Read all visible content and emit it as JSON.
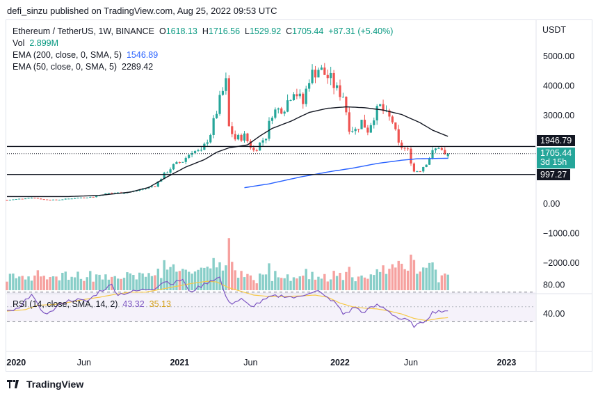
{
  "publisher": "defi_sinzu published on TradingView.com, Aug 25, 2022 09:53 UTC",
  "legend": {
    "symbol": "Ethereum / TetherUS, 1W, BINANCE",
    "o_label": "O",
    "o": "1618.13",
    "h_label": "H",
    "h": "1716.56",
    "l_label": "L",
    "l": "1529.92",
    "c_label": "C",
    "c": "1705.44",
    "change": "+87.31 (+5.40%)",
    "vol_label": "Vol",
    "vol": "2.899M",
    "ema200_label": "EMA (200, close, 0, SMA, 5)",
    "ema200": "1546.89",
    "ema50_label": "EMA (50, close, 0, SMA, 5)",
    "ema50": "2289.42",
    "rsi_label": "RSI (14, close, SMA, 14, 2)",
    "rsi": "43.32",
    "rsi_ma": "35.13"
  },
  "price_axis": {
    "currency": "USDT",
    "ticks": [
      "5000.00",
      "4000.00",
      "3000.00",
      "0.00",
      "−1000.00",
      "−2000.00"
    ],
    "tags": {
      "resistance": "1946.79",
      "last": "1705.44",
      "countdown": "3d 15h",
      "support": "997.27"
    }
  },
  "rsi_axis": {
    "ticks": [
      "80.00",
      "40.00"
    ]
  },
  "time_axis": {
    "ticks": [
      "2020",
      "Jun",
      "2021",
      "Jun",
      "2022",
      "Jun",
      "2023"
    ]
  },
  "footer": {
    "brand": "TradingView"
  },
  "colors": {
    "up": "#26a69a",
    "down": "#ef5350",
    "ema200": "#2962ff",
    "ema50": "#131722",
    "rsi": "#7e57c2",
    "rsi_ma": "#f7c948",
    "rsi_band": "#7e57c2",
    "level": "#131722"
  },
  "chart_data": {
    "type": "candlestick",
    "title": "Ethereum / TetherUS, 1W, BINANCE",
    "interval": "1W",
    "ylim": [
      -2500,
      5400
    ],
    "horizontal_levels": [
      1946.79,
      997.27
    ],
    "time_ticks": [
      "2020",
      "Jun",
      "2021",
      "Jun",
      "2022",
      "Jun",
      "2023"
    ],
    "rsi_ticks": [
      80,
      40
    ],
    "rsi_range": [
      20,
      95
    ],
    "rsi_bands": [
      70,
      30
    ],
    "anchors": [
      [
        0,
        130
      ],
      [
        8,
        215
      ],
      [
        12,
        150
      ],
      [
        16,
        135
      ],
      [
        22,
        200
      ],
      [
        28,
        240
      ],
      [
        33,
        370
      ],
      [
        38,
        380
      ],
      [
        42,
        450
      ],
      [
        48,
        620
      ],
      [
        51,
        1000
      ],
      [
        54,
        1300
      ],
      [
        57,
        1450
      ],
      [
        60,
        1800
      ],
      [
        63,
        1750
      ],
      [
        66,
        2400
      ],
      [
        69,
        3500
      ],
      [
        71,
        4100
      ],
      [
        72,
        2600
      ],
      [
        74,
        2200
      ],
      [
        77,
        2300
      ],
      [
        80,
        1800
      ],
      [
        84,
        2300
      ],
      [
        86,
        3100
      ],
      [
        90,
        3300
      ],
      [
        93,
        3900
      ],
      [
        96,
        3400
      ],
      [
        98,
        4300
      ],
      [
        101,
        4600
      ],
      [
        103,
        4400
      ],
      [
        105,
        4200
      ],
      [
        107,
        3850
      ],
      [
        109,
        3700
      ],
      [
        111,
        2600
      ],
      [
        113,
        2500
      ],
      [
        115,
        2800
      ],
      [
        117,
        2500
      ],
      [
        119,
        3000
      ],
      [
        121,
        3300
      ],
      [
        123,
        3000
      ],
      [
        125,
        2800
      ],
      [
        127,
        2000
      ],
      [
        130,
        1800
      ],
      [
        132,
        1100
      ],
      [
        134,
        1150
      ],
      [
        136,
        1400
      ],
      [
        138,
        1750
      ],
      [
        140,
        1950
      ],
      [
        142,
        1650
      ],
      [
        143,
        1705
      ]
    ],
    "ema50": [
      [
        0,
        250
      ],
      [
        20,
        250
      ],
      [
        30,
        290
      ],
      [
        40,
        400
      ],
      [
        46,
        560
      ],
      [
        52,
        920
      ],
      [
        58,
        1250
      ],
      [
        64,
        1500
      ],
      [
        68,
        1750
      ],
      [
        72,
        1900
      ],
      [
        78,
        2000
      ],
      [
        82,
        2300
      ],
      [
        86,
        2560
      ],
      [
        92,
        2800
      ],
      [
        98,
        3100
      ],
      [
        104,
        3240
      ],
      [
        110,
        3290
      ],
      [
        116,
        3260
      ],
      [
        122,
        3180
      ],
      [
        128,
        3030
      ],
      [
        134,
        2750
      ],
      [
        138,
        2500
      ],
      [
        143,
        2289
      ]
    ],
    "ema200": [
      [
        77,
        550
      ],
      [
        85,
        680
      ],
      [
        95,
        910
      ],
      [
        105,
        1100
      ],
      [
        112,
        1210
      ],
      [
        120,
        1370
      ],
      [
        128,
        1480
      ],
      [
        133,
        1530
      ],
      [
        143,
        1547
      ]
    ],
    "rsi_anchors": [
      [
        0,
        43
      ],
      [
        4,
        47
      ],
      [
        8,
        69
      ],
      [
        11,
        43
      ],
      [
        14,
        42
      ],
      [
        18,
        56
      ],
      [
        22,
        60
      ],
      [
        26,
        57
      ],
      [
        30,
        71
      ],
      [
        34,
        80
      ],
      [
        36,
        67
      ],
      [
        40,
        70
      ],
      [
        44,
        73
      ],
      [
        48,
        76
      ],
      [
        51,
        85
      ],
      [
        54,
        82
      ],
      [
        57,
        88
      ],
      [
        59,
        70
      ],
      [
        62,
        76
      ],
      [
        66,
        86
      ],
      [
        69,
        90
      ],
      [
        71,
        62
      ],
      [
        73,
        55
      ],
      [
        76,
        60
      ],
      [
        79,
        50
      ],
      [
        82,
        56
      ],
      [
        86,
        64
      ],
      [
        90,
        65
      ],
      [
        94,
        62
      ],
      [
        98,
        70
      ],
      [
        101,
        71
      ],
      [
        103,
        64
      ],
      [
        105,
        60
      ],
      [
        107,
        53
      ],
      [
        109,
        40
      ],
      [
        111,
        44
      ],
      [
        113,
        50
      ],
      [
        115,
        42
      ],
      [
        118,
        48
      ],
      [
        120,
        52
      ],
      [
        123,
        47
      ],
      [
        125,
        40
      ],
      [
        127,
        34
      ],
      [
        130,
        31
      ],
      [
        132,
        24
      ],
      [
        134,
        26
      ],
      [
        136,
        33
      ],
      [
        138,
        42
      ],
      [
        140,
        45
      ],
      [
        142,
        42
      ],
      [
        143,
        43
      ]
    ],
    "rsi_ma_anchors": [
      [
        0,
        44
      ],
      [
        6,
        46
      ],
      [
        10,
        52
      ],
      [
        15,
        53
      ],
      [
        20,
        56
      ],
      [
        25,
        60
      ],
      [
        30,
        63
      ],
      [
        35,
        67
      ],
      [
        40,
        70
      ],
      [
        45,
        70
      ],
      [
        50,
        74
      ],
      [
        55,
        78
      ],
      [
        60,
        82
      ],
      [
        65,
        85
      ],
      [
        68,
        84
      ],
      [
        72,
        76
      ],
      [
        76,
        71
      ],
      [
        80,
        66
      ],
      [
        85,
        64
      ],
      [
        90,
        64
      ],
      [
        96,
        65
      ],
      [
        100,
        66
      ],
      [
        104,
        63
      ],
      [
        108,
        55
      ],
      [
        112,
        50
      ],
      [
        116,
        48
      ],
      [
        120,
        47
      ],
      [
        124,
        44
      ],
      [
        128,
        40
      ],
      [
        132,
        34
      ],
      [
        136,
        31
      ],
      [
        140,
        34
      ],
      [
        143,
        35
      ]
    ]
  }
}
